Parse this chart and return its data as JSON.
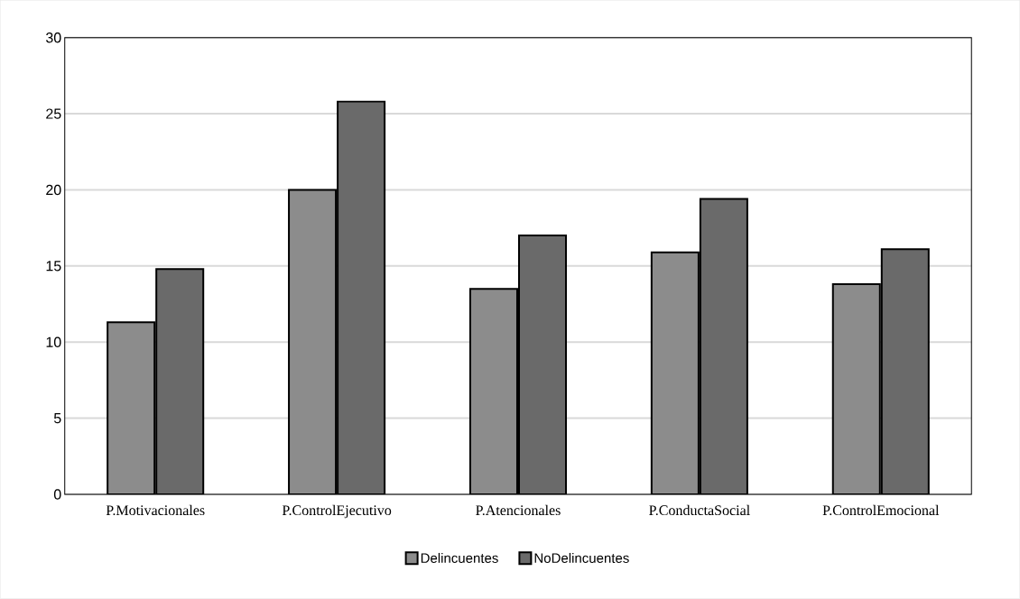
{
  "chart_data": {
    "type": "bar",
    "categories": [
      "P.Motivacionales",
      "P.ControlEjecutivo",
      "P.Atencionales",
      "P.ConductaSocial",
      "P.ControlEmocional"
    ],
    "series": [
      {
        "name": "Delincuentes",
        "color": "#8c8c8c",
        "values": [
          11.3,
          20.0,
          13.5,
          15.9,
          13.8
        ]
      },
      {
        "name": "NoDelincuentes",
        "color": "#6a6a6a",
        "values": [
          14.8,
          25.8,
          17.0,
          19.4,
          16.1
        ]
      }
    ],
    "ylim": [
      0,
      30
    ],
    "yticks": [
      0,
      5,
      10,
      15,
      20,
      25,
      30
    ],
    "grid": "y",
    "legend": "bottom"
  }
}
